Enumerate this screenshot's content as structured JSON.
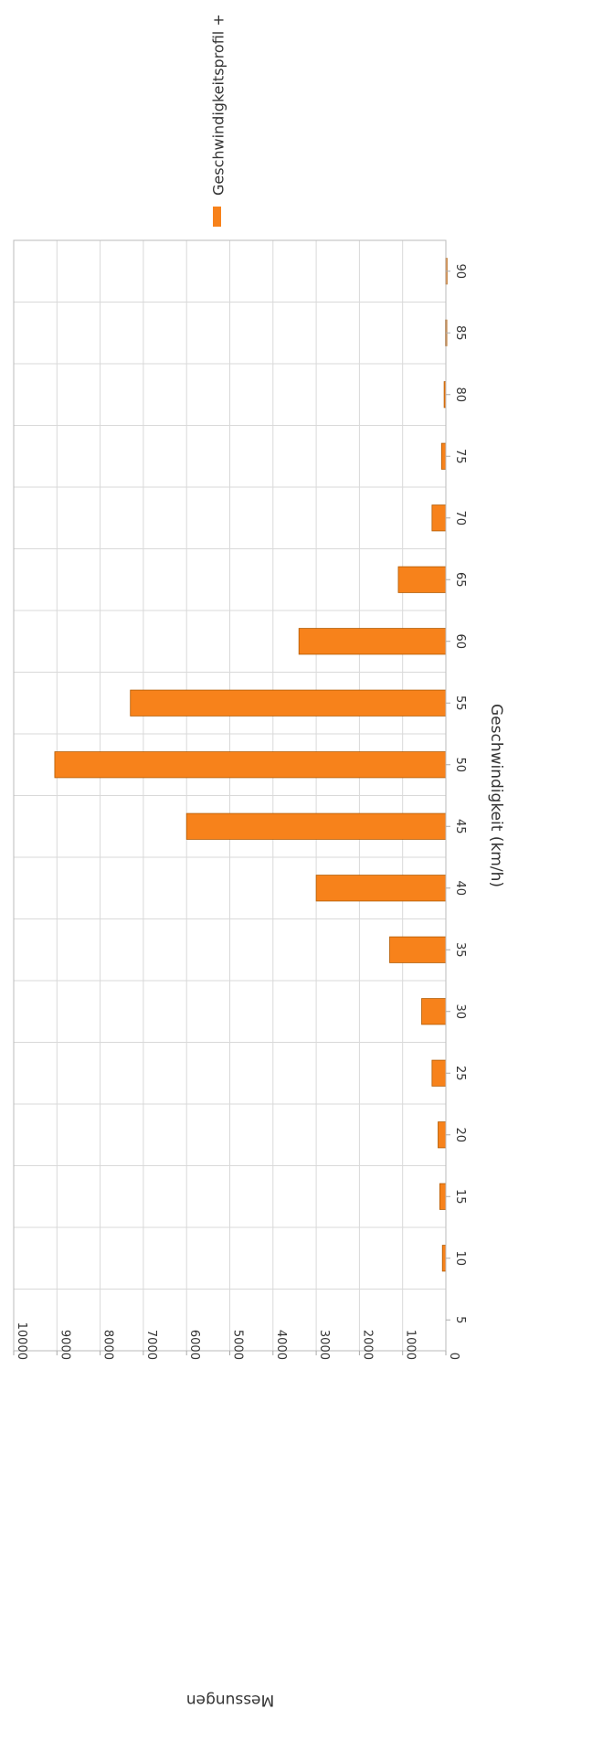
{
  "chart_data": {
    "type": "bar",
    "orientation": "rotated-90-clockwise",
    "title": "",
    "xlabel": "Geschwindigkeit (km/h)",
    "ylabel": "Messungen",
    "categories": [
      "5",
      "10",
      "15",
      "20",
      "25",
      "30",
      "35",
      "40",
      "45",
      "50",
      "55",
      "60",
      "65",
      "70",
      "75",
      "80",
      "85",
      "90"
    ],
    "series": [
      {
        "name": "Geschwindigkeitsprofil +",
        "color": "#f7821b",
        "values": [
          0,
          80,
          140,
          180,
          320,
          560,
          1300,
          3000,
          6000,
          9050,
          7300,
          3400,
          1100,
          320,
          100,
          40,
          10,
          5
        ]
      }
    ],
    "ylim": [
      0,
      10000
    ],
    "yticks": [
      "0",
      "1000",
      "2000",
      "3000",
      "4000",
      "5000",
      "6000",
      "7000",
      "8000",
      "9000",
      "10000"
    ],
    "grid": true,
    "legend_position": "top"
  }
}
